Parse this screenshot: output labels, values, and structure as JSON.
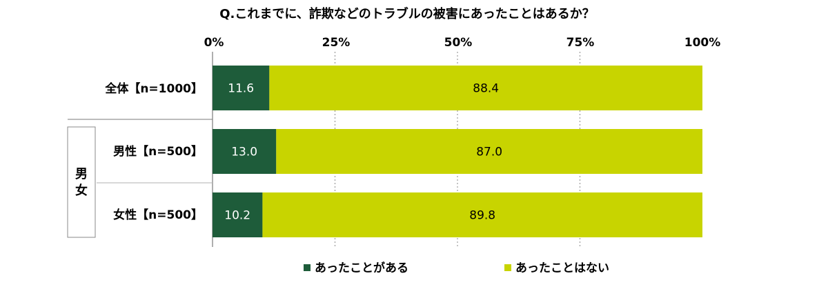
{
  "chart_data": {
    "type": "bar",
    "orientation": "horizontal",
    "stacked": true,
    "title": "Q.これまでに、詐欺などのトラブルの被害にあったことはあるか？",
    "xlim": [
      0,
      100
    ],
    "xticks": [
      "0%",
      "25%",
      "50%",
      "75%",
      "100%"
    ],
    "grid": true,
    "categories": [
      "全体【n=1000】",
      "男性【n=500】",
      "女性【n=500】"
    ],
    "group_label": "男女",
    "series": [
      {
        "name": "あったことがある",
        "values": [
          11.6,
          13.0,
          10.2
        ],
        "color": "#1e5c3a",
        "labels": [
          "11.6",
          "13.0",
          "10.2"
        ]
      },
      {
        "name": "あったことはない",
        "values": [
          88.4,
          87.0,
          89.8
        ],
        "color": "#c8d400",
        "labels": [
          "88.4",
          "87.0",
          "89.8"
        ]
      }
    ],
    "legend_position": "bottom"
  }
}
